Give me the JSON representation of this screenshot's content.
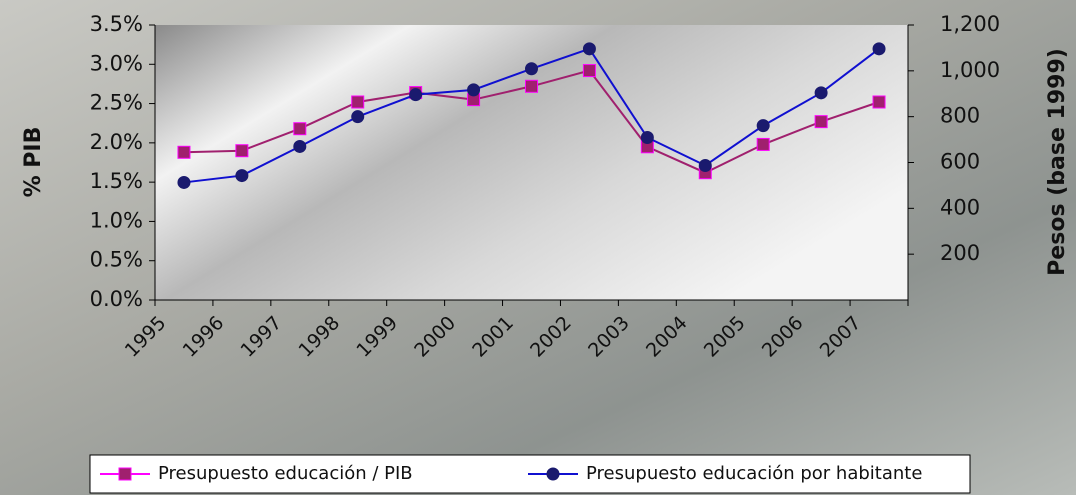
{
  "chart_data": {
    "type": "line",
    "categories": [
      "1995",
      "1996",
      "1997",
      "1998",
      "1999",
      "2000",
      "2001",
      "2002",
      "2003",
      "2004",
      "2005",
      "2006",
      "2007"
    ],
    "series": [
      {
        "name": "Presupuesto educación / PIB",
        "color": "#a0206e",
        "marker_edge": "#ff00ff",
        "marker": "square",
        "values": [
          1.88,
          1.9,
          2.18,
          2.52,
          2.64,
          2.55,
          2.72,
          2.92,
          1.95,
          1.62,
          1.98,
          2.27,
          2.52
        ]
      },
      {
        "name": "Presupuesto educación por habitante",
        "color": "#1010d0",
        "marker_edge": "#1a1a6e",
        "marker": "circle",
        "axis": "y2",
        "values": [
          513,
          543,
          670,
          800,
          896,
          917,
          1009,
          1096,
          709,
          587,
          761,
          904,
          1096
        ]
      }
    ],
    "ylabel": "% PIB",
    "y2label": "Pesos (base 1999)",
    "ylim": [
      0,
      3.5
    ],
    "yticks": [
      {
        "value": 0,
        "label": "0.0%"
      },
      {
        "value": 0.5,
        "label": "0.5%"
      },
      {
        "value": 1,
        "label": "1.0%"
      },
      {
        "value": 1.5,
        "label": "1.5%"
      },
      {
        "value": 2,
        "label": "2.0%"
      },
      {
        "value": 2.5,
        "label": "2.5%"
      },
      {
        "value": 3,
        "label": "3.0%"
      },
      {
        "value": 3.5,
        "label": "3.5%"
      }
    ],
    "y2lim": [
      0,
      1200
    ],
    "y2ticks": [
      200,
      400,
      600,
      800,
      {
        "value": 1000,
        "label": "1,000"
      },
      {
        "value": 1200,
        "label": "1,200"
      }
    ],
    "legend": "bottom"
  }
}
